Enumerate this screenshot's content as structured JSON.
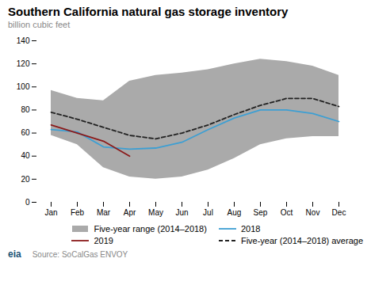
{
  "chart_data": {
    "type": "line",
    "title": "Southern California natural gas storage inventory",
    "subtitle": "billion cubic feet",
    "annotations": [
      "eia",
      "Source: SoCalGas ENVOY"
    ],
    "categories": [
      "Jan",
      "Feb",
      "Mar",
      "Apr",
      "May",
      "Jun",
      "Jul",
      "Aug",
      "Sep",
      "Oct",
      "Nov",
      "Dec"
    ],
    "series": [
      {
        "name": "Five-year range (2014–2018)",
        "type": "area",
        "color": "#aaaaaa",
        "lower": [
          58,
          50,
          30,
          22,
          20,
          22,
          28,
          38,
          50,
          55,
          57,
          57
        ],
        "upper": [
          97,
          90,
          88,
          105,
          110,
          112,
          115,
          120,
          124,
          122,
          118,
          110
        ]
      },
      {
        "name": "2018",
        "type": "line",
        "color": "#3d9fd3",
        "values": [
          63,
          61,
          48,
          46,
          47,
          52,
          63,
          73,
          80,
          80,
          77,
          70
        ]
      },
      {
        "name": "2019",
        "type": "line",
        "color": "#8b1a1a",
        "values": [
          67,
          60,
          53,
          40,
          null,
          null,
          null,
          null,
          null,
          null,
          null,
          null
        ]
      },
      {
        "name": "Five-year (2014–2018) average",
        "type": "line",
        "color": "#222222",
        "line_style": "dashed",
        "values": [
          78,
          72,
          65,
          58,
          55,
          60,
          67,
          76,
          84,
          90,
          90,
          83
        ]
      }
    ],
    "ylim": [
      0,
      140
    ],
    "yticks": [
      0,
      20,
      40,
      60,
      80,
      100,
      120,
      140
    ],
    "legend": "lower right"
  }
}
